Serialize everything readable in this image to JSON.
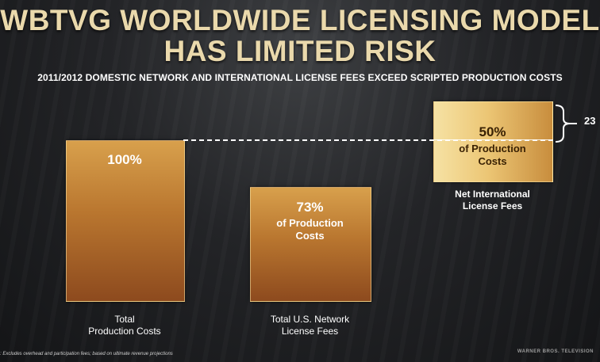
{
  "title_line1": "WBTVG WORLDWIDE LICENSING MODEL",
  "title_line2": "HAS LIMITED RISK",
  "subtitle": "2011/2012 DOMESTIC NETWORK AND INTERNATIONAL LICENSE FEES EXCEED SCRIPTED PRODUCTION COSTS",
  "chart_data": {
    "type": "bar",
    "categories": [
      "Total Production Costs",
      "Total U.S. Network License Fees",
      "Net International License Fees"
    ],
    "values": [
      100,
      73,
      50
    ],
    "unit": "% of Production Costs",
    "title": "2011/2012 DOMESTIC NETWORK AND INTERNATIONAL LICENSE FEES EXCEED SCRIPTED PRODUCTION COSTS",
    "reference_line_value": 100,
    "bracket_value": "23",
    "bar_labels": [
      {
        "value": "100%",
        "sub1": "",
        "sub2": ""
      },
      {
        "value": "73%",
        "sub1": "of Production",
        "sub2": "Costs"
      },
      {
        "value": "50%",
        "sub1": "of Production",
        "sub2": "Costs"
      }
    ],
    "category_labels": [
      {
        "line1": "Total",
        "line2": "Production Costs"
      },
      {
        "line1": "Total U.S. Network",
        "line2": "License Fees"
      },
      {
        "line1": "Net International",
        "line2": "License Fees"
      }
    ],
    "colors": {
      "bar_dark": "#b9762f",
      "bar_light": "#ecc675",
      "title": "#ead9ac"
    }
  },
  "footnote": ": Excludes overhead and participation fees; based on ultimate revenue projections",
  "brand": "WARNER BROS. TELEVISION"
}
